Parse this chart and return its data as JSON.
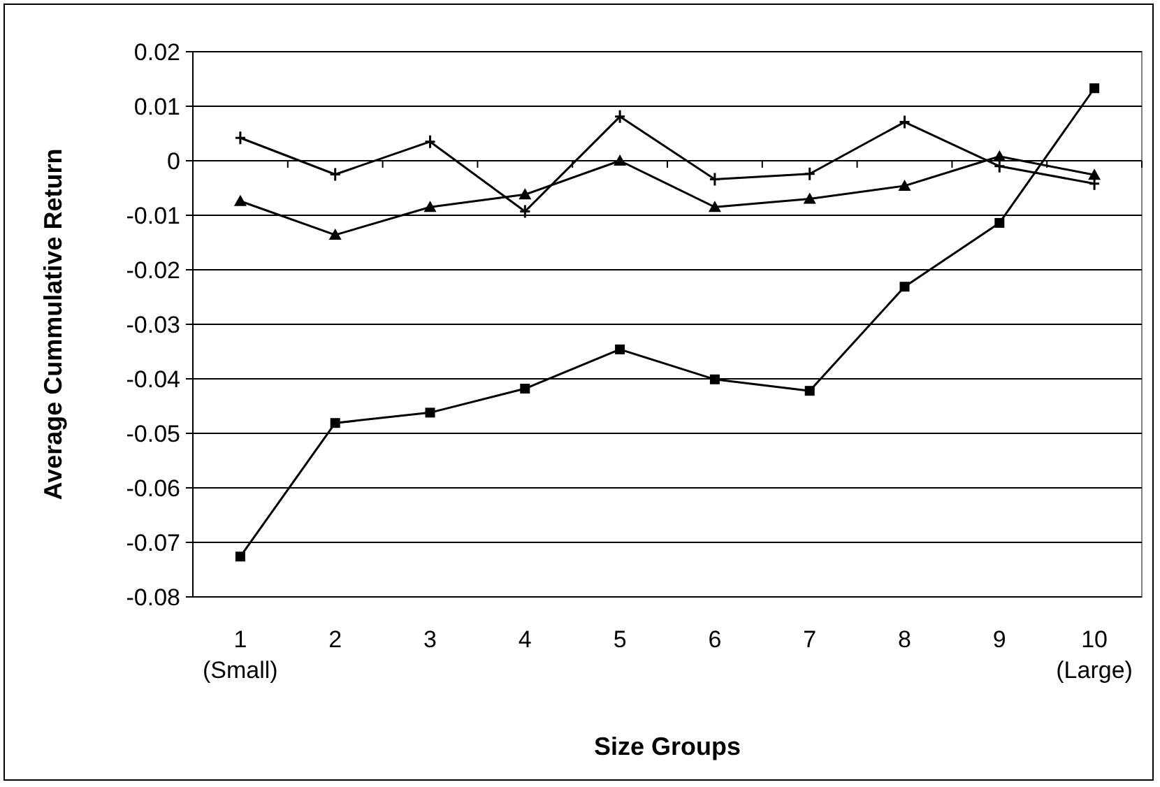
{
  "chart_data": {
    "type": "line",
    "xlabel": "Size Groups",
    "ylabel": "Average Cummulative Return",
    "categories": [
      "1\n(Small)",
      "2",
      "3",
      "4",
      "5",
      "6",
      "7",
      "8",
      "9",
      "10\n(Large)"
    ],
    "ylim": [
      -0.08,
      0.02
    ],
    "yticks": [
      -0.08,
      -0.07,
      -0.06,
      -0.05,
      -0.04,
      -0.03,
      -0.02,
      -0.01,
      0,
      0.01,
      0.02
    ],
    "grid": "y",
    "series": [
      {
        "color": "#000000",
        "marker": "cross",
        "values": [
          0.0042,
          -0.0025,
          0.0035,
          -0.0093,
          0.0081,
          -0.0034,
          -0.0024,
          0.0071,
          -0.001,
          -0.0042
        ]
      },
      {
        "color": "#000000",
        "marker": "triangle",
        "values": [
          -0.0074,
          -0.0136,
          -0.0085,
          -0.0062,
          0,
          -0.0085,
          -0.007,
          -0.0046,
          0.0008,
          -0.0026
        ]
      },
      {
        "color": "#000000",
        "marker": "square",
        "values": [
          -0.0726,
          -0.0481,
          -0.0462,
          -0.0418,
          -0.0346,
          -0.0401,
          -0.0422,
          -0.0231,
          -0.0114,
          0.0133
        ]
      }
    ]
  }
}
